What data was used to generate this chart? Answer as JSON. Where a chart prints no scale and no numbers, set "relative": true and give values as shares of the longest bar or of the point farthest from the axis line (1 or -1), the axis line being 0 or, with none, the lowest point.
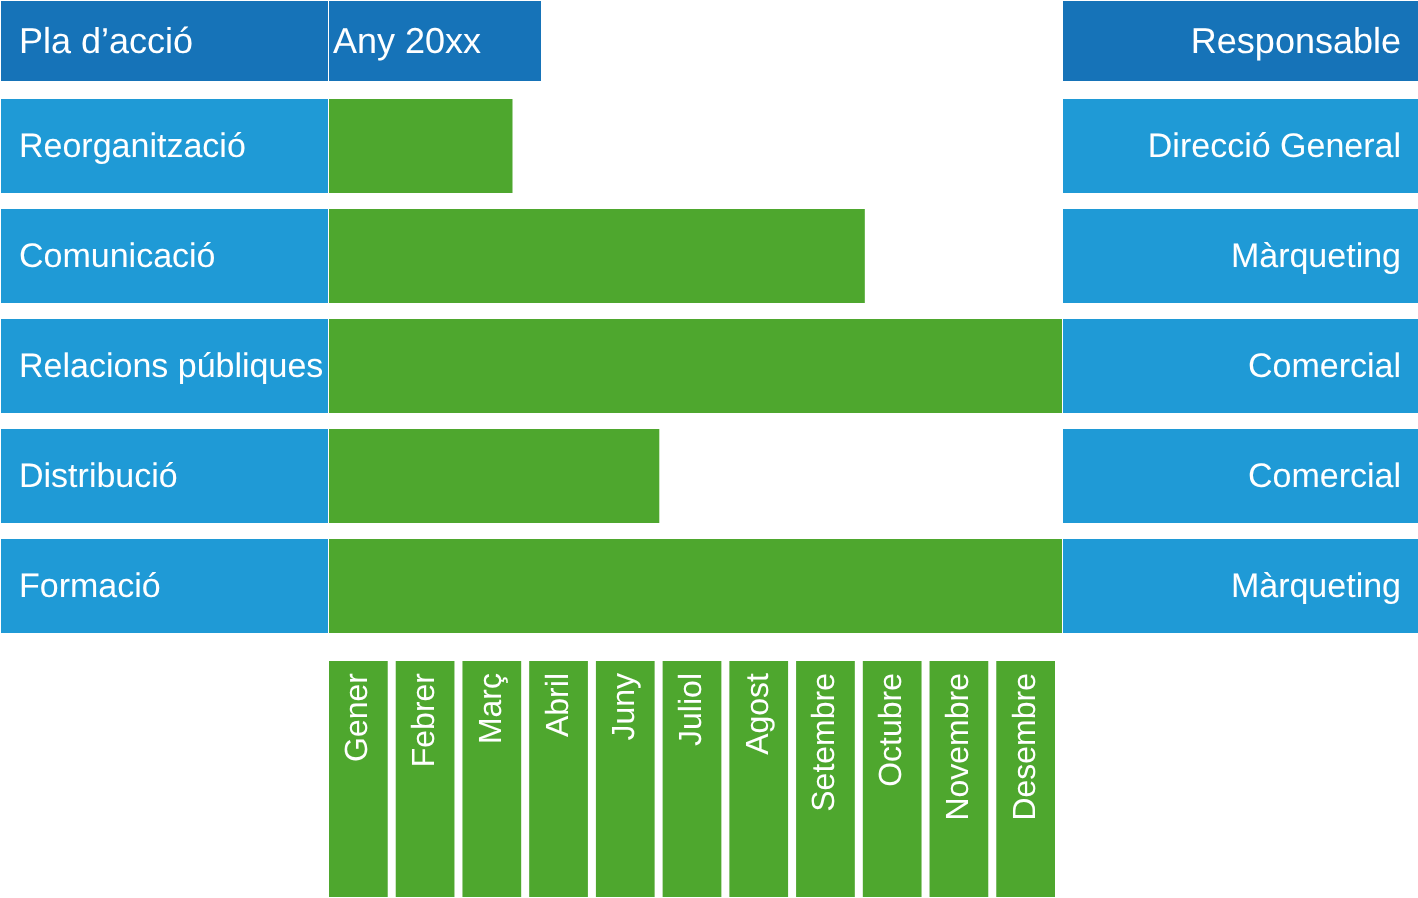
{
  "chart_data": {
    "type": "bar",
    "orientation": "horizontal",
    "relative": true,
    "title": "Any 20xx",
    "ylabel": "Pla d’acció",
    "y2label": "Responsable",
    "categories": [
      "Reorganització",
      "Comunicació",
      "Relacions públiques",
      "Distribució",
      "Formació"
    ],
    "values": [
      0.25,
      0.73,
      1,
      0.45,
      1
    ],
    "color": "#4ea72e",
    "annotations": [
      "Direcció General",
      "Màrqueting",
      "Comercial",
      "Comercial",
      "Màrqueting",
      "Gener",
      "Febrer",
      "Març",
      "Abril",
      "Juny",
      "Juliol",
      "Agost",
      "Setembre",
      "Octubre",
      "Novembre",
      "Desembre"
    ]
  }
}
